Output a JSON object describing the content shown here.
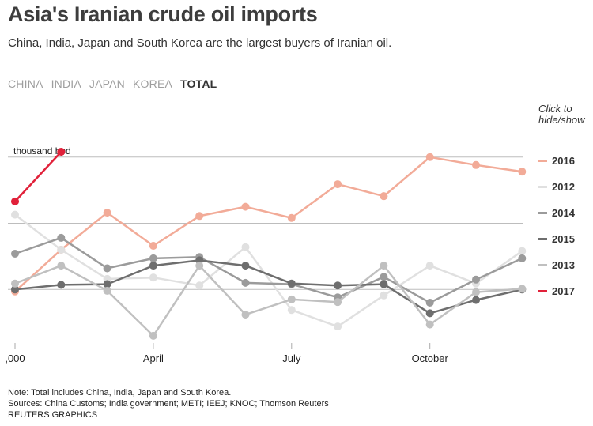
{
  "title": "Asia's Iranian crude oil imports",
  "subtitle": "China, India, Japan and South Korea are the largest buyers of Iranian oil.",
  "tabs": [
    {
      "label": "CHINA",
      "active": false
    },
    {
      "label": "INDIA",
      "active": false
    },
    {
      "label": "JAPAN",
      "active": false
    },
    {
      "label": "KOREA",
      "active": false
    },
    {
      "label": "TOTAL",
      "active": true
    }
  ],
  "legend_hint": "Click to hide/show",
  "footer": {
    "note": "Note: Total includes China, India, Japan and South Korea.",
    "sources": "Sources: China Customs; India government; METI; IEEJ; KNOC; Thomson Reuters",
    "credit": "REUTERS GRAPHICS"
  },
  "chart_data": {
    "type": "line",
    "ylabel": "thousand bpd",
    "ylim": [
      1000,
      2600
    ],
    "y_gridlines": [
      1500,
      2000,
      2500
    ],
    "y_tick_labels": [
      "",
      "",
      ""
    ],
    "months": [
      1,
      2,
      3,
      4,
      5,
      6,
      7,
      8,
      9,
      10,
      11,
      12
    ],
    "x_tick_labels": [
      {
        "month": 1,
        "label": ",000"
      },
      {
        "month": 4,
        "label": "April"
      },
      {
        "month": 7,
        "label": "July"
      },
      {
        "month": 10,
        "label": "October"
      }
    ],
    "series": [
      {
        "name": "2016",
        "color": "#f2ab98",
        "values": [
          1485,
          1800,
          2080,
          1830,
          2055,
          2125,
          2040,
          2295,
          2205,
          2500,
          2440,
          2390
        ]
      },
      {
        "name": "2012",
        "color": "#e0e0e0",
        "values": [
          2065,
          1800,
          1580,
          1590,
          1530,
          1820,
          1345,
          1220,
          1455,
          1680,
          1545,
          1790
        ]
      },
      {
        "name": "2014",
        "color": "#9b9b9b",
        "values": [
          1770,
          1890,
          1660,
          1735,
          1745,
          1550,
          1540,
          1440,
          1595,
          1400,
          1575,
          1735
        ]
      },
      {
        "name": "2015",
        "color": "#6e6e6e",
        "values": [
          1500,
          1535,
          1540,
          1680,
          1720,
          1680,
          1545,
          1530,
          1540,
          1320,
          1420,
          1500
        ]
      },
      {
        "name": "2013",
        "color": "#c0c0c0",
        "values": [
          1545,
          1680,
          1490,
          1150,
          1680,
          1310,
          1425,
          1405,
          1680,
          1235,
          1480,
          1505
        ]
      },
      {
        "name": "2017",
        "color": "#e1213a",
        "values": [
          2165,
          2540
        ]
      }
    ]
  }
}
